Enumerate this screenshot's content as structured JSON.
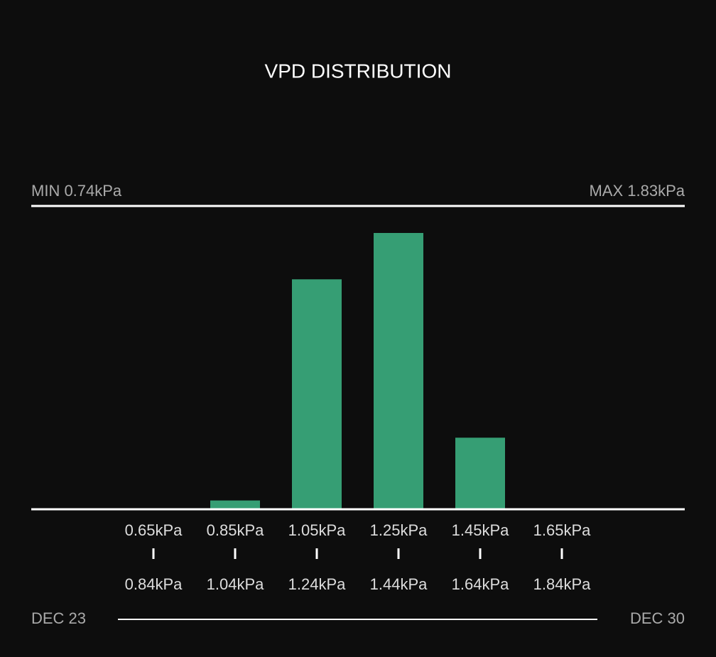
{
  "chart_data": {
    "type": "bar",
    "title": "VPD DISTRIBUTION",
    "min_label": "MIN 0.74kPa",
    "max_label": "MAX 1.83kPa",
    "categories": [
      "0.65kPa",
      "0.85kPa",
      "1.05kPa",
      "1.25kPa",
      "1.45kPa",
      "1.65kPa"
    ],
    "category_ends": [
      "0.84kPa",
      "1.04kPa",
      "1.24kPa",
      "1.44kPa",
      "1.64kPa",
      "1.84kPa"
    ],
    "values": [
      0,
      1.5,
      39.2,
      47.1,
      12.2,
      0
    ],
    "color": "#369e74",
    "start_date": "DEC 23",
    "end_date": "DEC 30"
  }
}
